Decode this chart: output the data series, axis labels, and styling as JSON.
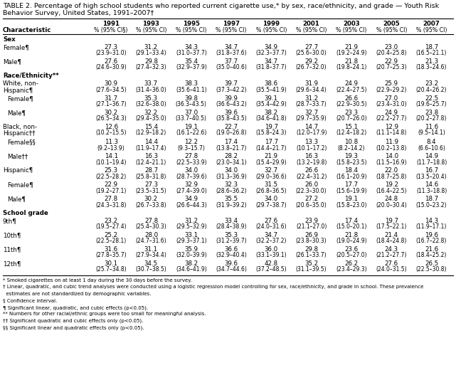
{
  "title_line1": "TABLE 2. Percentage of high school students who reported current cigarette use,* by sex, race/ethnicity, and grade — Youth Risk",
  "title_line2": "Behavior Survey, United States, 1991–2007†",
  "years": [
    "1991",
    "1993",
    "1995",
    "1997",
    "1999",
    "2001",
    "2003",
    "2005",
    "2007"
  ],
  "header_row2": [
    "Characteristic",
    "% (95% CI§)",
    "% (95% CI)",
    "% (95% CI)",
    "% (95% CI)",
    "% (95% CI)",
    "% (95% CI)",
    "% (95% CI)",
    "% (95% CI)",
    "% (95% CI)"
  ],
  "rows": [
    {
      "label": "Sex",
      "indent": 0,
      "bold": true,
      "type": "section"
    },
    {
      "label": "Female¶",
      "indent": 1,
      "type": "data",
      "two_line_label": false,
      "values": [
        "27.3",
        "31.2",
        "34.3",
        "34.7",
        "34.9",
        "27.7",
        "21.9",
        "23.0",
        "18.7"
      ],
      "ci": [
        "(23.9–31.0)",
        "(29.1–33.4)",
        "(31.0–37.7)",
        "(31.8–37.6)",
        "(32.3–37.7)",
        "(25.6–30.0)",
        "(19.2–24.9)",
        "(20.4–25.8)",
        "(16.5–21.1)"
      ]
    },
    {
      "label": "Male¶",
      "indent": 1,
      "type": "data",
      "two_line_label": false,
      "values": [
        "27.6",
        "29.8",
        "35.4",
        "37.7",
        "34.7",
        "29.2",
        "21.8",
        "22.9",
        "21.3"
      ],
      "ci": [
        "(24.6–30.9)",
        "(27.4–32.3)",
        "(32.9–37.9)",
        "(35.0–40.6)",
        "(31.8–37.7)",
        "(26.7–32.0)",
        "(19.8–24.1)",
        "(20.7–25.3)",
        "(18.3–24.6)"
      ]
    },
    {
      "label": "Race/Ethnicity**",
      "indent": 0,
      "bold": true,
      "type": "section"
    },
    {
      "label": "White, non-",
      "label2": "Hispanic¶",
      "indent": 1,
      "type": "data",
      "two_line_label": true,
      "values": [
        "30.9",
        "33.7",
        "38.3",
        "39.7",
        "38.6",
        "31.9",
        "24.9",
        "25.9",
        "23.2"
      ],
      "ci": [
        "(27.6–34.5)",
        "(31.4–36.0)",
        "(35.6–41.1)",
        "(37.3–42.2)",
        "(35.5–41.9)",
        "(29.6–34.4)",
        "(22.4–27.5)",
        "(22.9–29.2)",
        "(20.4–26.2)"
      ]
    },
    {
      "label": "Female¶",
      "indent": 2,
      "type": "data",
      "two_line_label": false,
      "values": [
        "31.7",
        "35.3",
        "39.8",
        "39.9",
        "39.1",
        "31.2",
        "26.6",
        "27.0",
        "22.5"
      ],
      "ci": [
        "(27.1–36.7)",
        "(32.6–38.0)",
        "(36.3–43.5)",
        "(36.6–43.2)",
        "(35.4–42.9)",
        "(28.7–33.7)",
        "(22.9–30.5)",
        "(23.4–31.0)",
        "(19.6–25.7)"
      ]
    },
    {
      "label": "Male¶",
      "indent": 2,
      "type": "data",
      "two_line_label": false,
      "values": [
        "30.2",
        "32.2",
        "37.0",
        "39.6",
        "38.2",
        "32.7",
        "23.3",
        "24.9",
        "23.8"
      ],
      "ci": [
        "(26.5–34.3)",
        "(29.4–35.0)",
        "(33.7–40.5)",
        "(35.8–43.5)",
        "(34.6–41.8)",
        "(29.7–35.9)",
        "(20.7–26.0)",
        "(22.2–27.7)",
        "(20.2–27.8)"
      ]
    },
    {
      "label": "Black, non-",
      "label2": "Hispanic††",
      "indent": 1,
      "type": "data",
      "two_line_label": true,
      "values": [
        "12.6",
        "15.4",
        "19.1",
        "22.7",
        "19.7",
        "14.7",
        "15.1",
        "12.9",
        "11.6"
      ],
      "ci": [
        "(10.2–15.5)",
        "(12.9–18.2)",
        "(16.1–22.6)",
        "(19.0–26.8)",
        "(15.8–24.3)",
        "(12.0–17.9)",
        "(12.4–18.2)",
        "(11.1–14.8)",
        "(9.5–14.1)"
      ]
    },
    {
      "label": "Female§§",
      "indent": 2,
      "type": "data",
      "two_line_label": false,
      "values": [
        "11.3",
        "14.4",
        "12.2",
        "17.4",
        "17.7",
        "13.3",
        "10.8",
        "11.9",
        "8.4"
      ],
      "ci": [
        "(9.2–13.9)",
        "(11.9–17.4)",
        "(9.3–15.7)",
        "(13.8–21.7)",
        "(14.4–21.7)",
        "(10.1–17.2)",
        "(8.2–14.2)",
        "(10.2–13.8)",
        "(6.6–10.6)"
      ]
    },
    {
      "label": "Male††",
      "indent": 2,
      "type": "data",
      "two_line_label": false,
      "values": [
        "14.1",
        "16.3",
        "27.8",
        "28.2",
        "21.9",
        "16.3",
        "19.3",
        "14.0",
        "14.9"
      ],
      "ci": [
        "(10.1–19.4)",
        "(12.4–21.1)",
        "(22.5–33.9)",
        "(23.0–34.1)",
        "(15.4–29.9)",
        "(13.2–19.8)",
        "(15.8–23.5)",
        "(11.5–16.9)",
        "(11.7–18.8)"
      ]
    },
    {
      "label": "Hispanic¶",
      "indent": 1,
      "type": "data",
      "two_line_label": false,
      "values": [
        "25.3",
        "28.7",
        "34.0",
        "34.0",
        "32.7",
        "26.6",
        "18.4",
        "22.0",
        "16.7"
      ],
      "ci": [
        "(22.5–28.2)",
        "(25.8–31.8)",
        "(28.7–39.6)",
        "(31.3–36.9)",
        "(29.0–36.6)",
        "(22.4–31.2)",
        "(16.1–20.9)",
        "(18.7–25.8)",
        "(13.5–20.4)"
      ]
    },
    {
      "label": "Female¶",
      "indent": 2,
      "type": "data",
      "two_line_label": false,
      "values": [
        "22.9",
        "27.3",
        "32.9",
        "32.3",
        "31.5",
        "26.0",
        "17.7",
        "19.2",
        "14.6"
      ],
      "ci": [
        "(19.2–27.1)",
        "(23.5–31.5)",
        "(27.4–39.0)",
        "(28.6–36.2)",
        "(26.8–36.5)",
        "(22.3–30.0)",
        "(15.6–19.9)",
        "(16.4–22.5)",
        "(11.3–18.8)"
      ]
    },
    {
      "label": "Male¶",
      "indent": 2,
      "type": "data",
      "two_line_label": false,
      "values": [
        "27.8",
        "30.2",
        "34.9",
        "35.5",
        "34.0",
        "27.2",
        "19.1",
        "24.8",
        "18.7"
      ],
      "ci": [
        "(24.3–31.8)",
        "(26.7–33.8)",
        "(26.6–44.3)",
        "(31.9–39.2)",
        "(29.7–38.7)",
        "(20.6–35.0)",
        "(15.8–23.0)",
        "(20.0–30.4)",
        "(15.0–23.2)"
      ]
    },
    {
      "label": "School grade",
      "indent": 0,
      "bold": true,
      "type": "section"
    },
    {
      "label": "9th¶",
      "indent": 1,
      "type": "data",
      "two_line_label": false,
      "values": [
        "23.2",
        "27.8",
        "31.2",
        "33.4",
        "27.6",
        "23.9",
        "17.4",
        "19.7",
        "14.3"
      ],
      "ci": [
        "(19.5–27.4)",
        "(25.4–30.3)",
        "(29.5–32.9)",
        "(28.4–38.9)",
        "(24.0–31.6)",
        "(21.1–27.0)",
        "(15.0–20.1)",
        "(17.5–22.1)",
        "(11.9–17.1)"
      ]
    },
    {
      "label": "10th¶",
      "indent": 1,
      "type": "data",
      "two_line_label": false,
      "values": [
        "25.2",
        "28.0",
        "33.1",
        "35.3",
        "34.7",
        "26.9",
        "21.8",
        "21.4",
        "19.6"
      ],
      "ci": [
        "(22.5–28.1)",
        "(24.7–31.6)",
        "(29.3–37.1)",
        "(31.2–39.7)",
        "(32.2–37.2)",
        "(23.8–30.3)",
        "(19.0–24.9)",
        "(18.4–24.8)",
        "(16.7–22.8)"
      ]
    },
    {
      "label": "11th¶",
      "indent": 1,
      "type": "data",
      "two_line_label": false,
      "values": [
        "31.6",
        "31.1",
        "35.9",
        "36.6",
        "36.0",
        "29.8",
        "23.6",
        "24.3",
        "21.6"
      ],
      "ci": [
        "(27.8–35.7)",
        "(27.9–34.4)",
        "(32.0–39.9)",
        "(32.9–40.4)",
        "(33.1–39.1)",
        "(26.1–33.7)",
        "(20.5–27.0)",
        "(21.2–27.7)",
        "(18.4–25.2)"
      ]
    },
    {
      "label": "12th¶",
      "indent": 1,
      "type": "data",
      "two_line_label": false,
      "values": [
        "30.1",
        "34.5",
        "38.2",
        "39.6",
        "42.8",
        "35.2",
        "26.2",
        "27.6",
        "26.5"
      ],
      "ci": [
        "(25.7–34.8)",
        "(30.7–38.5)",
        "(34.6–41.9)",
        "(34.7–44.6)",
        "(37.2–48.5)",
        "(31.1–39.5)",
        "(23.4–29.3)",
        "(24.0–31.5)",
        "(22.5–30.8)"
      ]
    }
  ],
  "footnotes": [
    "* Smoked cigarettes on at least 1 day during the 30 days before the survey.",
    "† Linear, quadratic, and cubic trend analyses were conducted using a logistic regression model controlling for sex, race/ethnicity, and grade in school. These prevalence",
    "  estimates are not standardized by demographic variables.",
    "§ Confidence interval.",
    "¶ Significant linear, quadratic, and cubic effects (p<0.05).",
    "** Numbers for other racial/ethnic groups were too small for meaningful analysis.",
    "†† Significant quadratic and cubic effects only (p<0.05).",
    "§§ Significant linear and quadratic effects only (p<0.05)."
  ],
  "bg_color": "#ffffff",
  "text_color": "#000000",
  "font_size": 6.2,
  "ci_font_size": 5.5,
  "title_font_size": 6.8
}
